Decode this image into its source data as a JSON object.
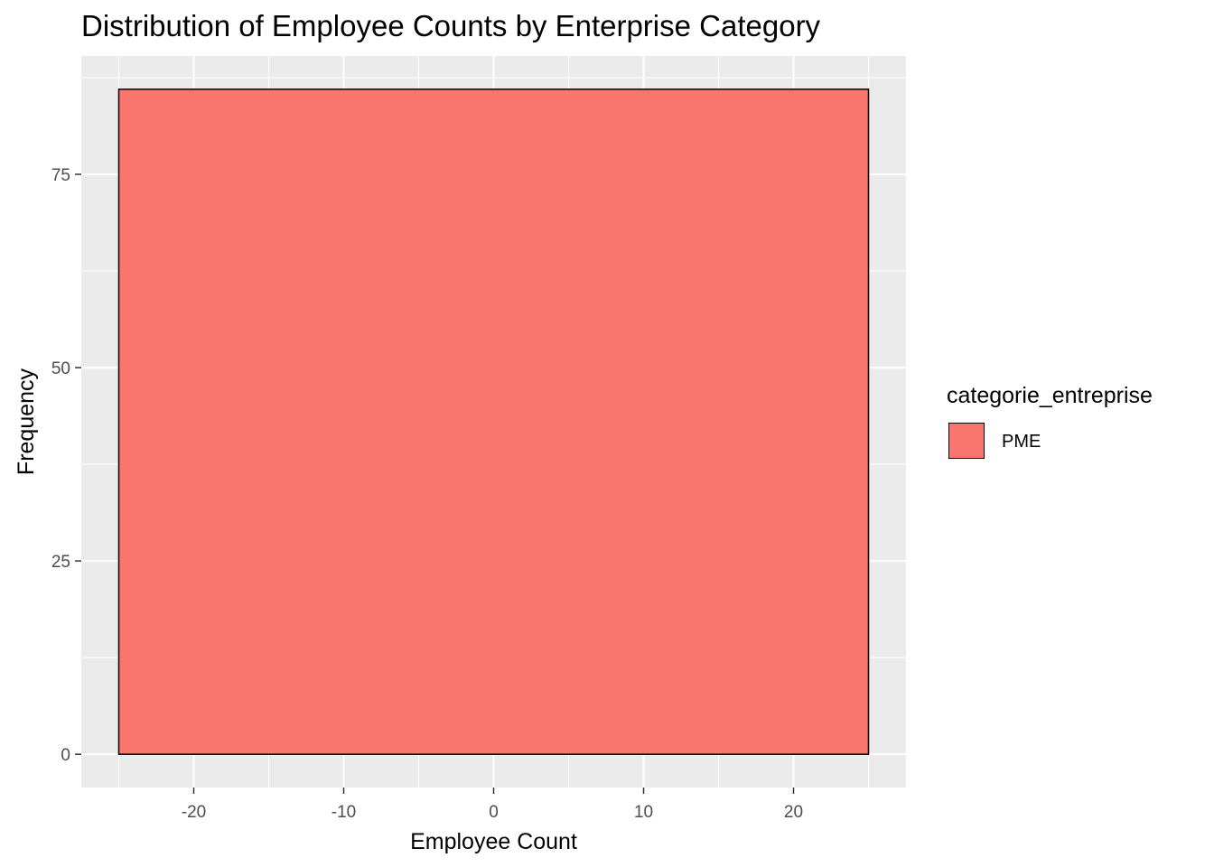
{
  "chart_data": {
    "type": "bar",
    "title": "Distribution of Employee Counts by Enterprise Category",
    "xlabel": "Employee Count",
    "ylabel": "Frequency",
    "xlim": [
      -27.5,
      27.5
    ],
    "ylim": [
      -4.3,
      90.3
    ],
    "x_ticks": [
      -20,
      -10,
      0,
      10,
      20
    ],
    "y_ticks": [
      0,
      25,
      50,
      75
    ],
    "grid": true,
    "legend": {
      "title": "categorie_entreprise",
      "position": "right"
    },
    "series": [
      {
        "name": "PME",
        "color": "#F8766D",
        "bins": [
          {
            "x_min": -25,
            "x_max": 25,
            "count": 86
          }
        ]
      }
    ]
  }
}
